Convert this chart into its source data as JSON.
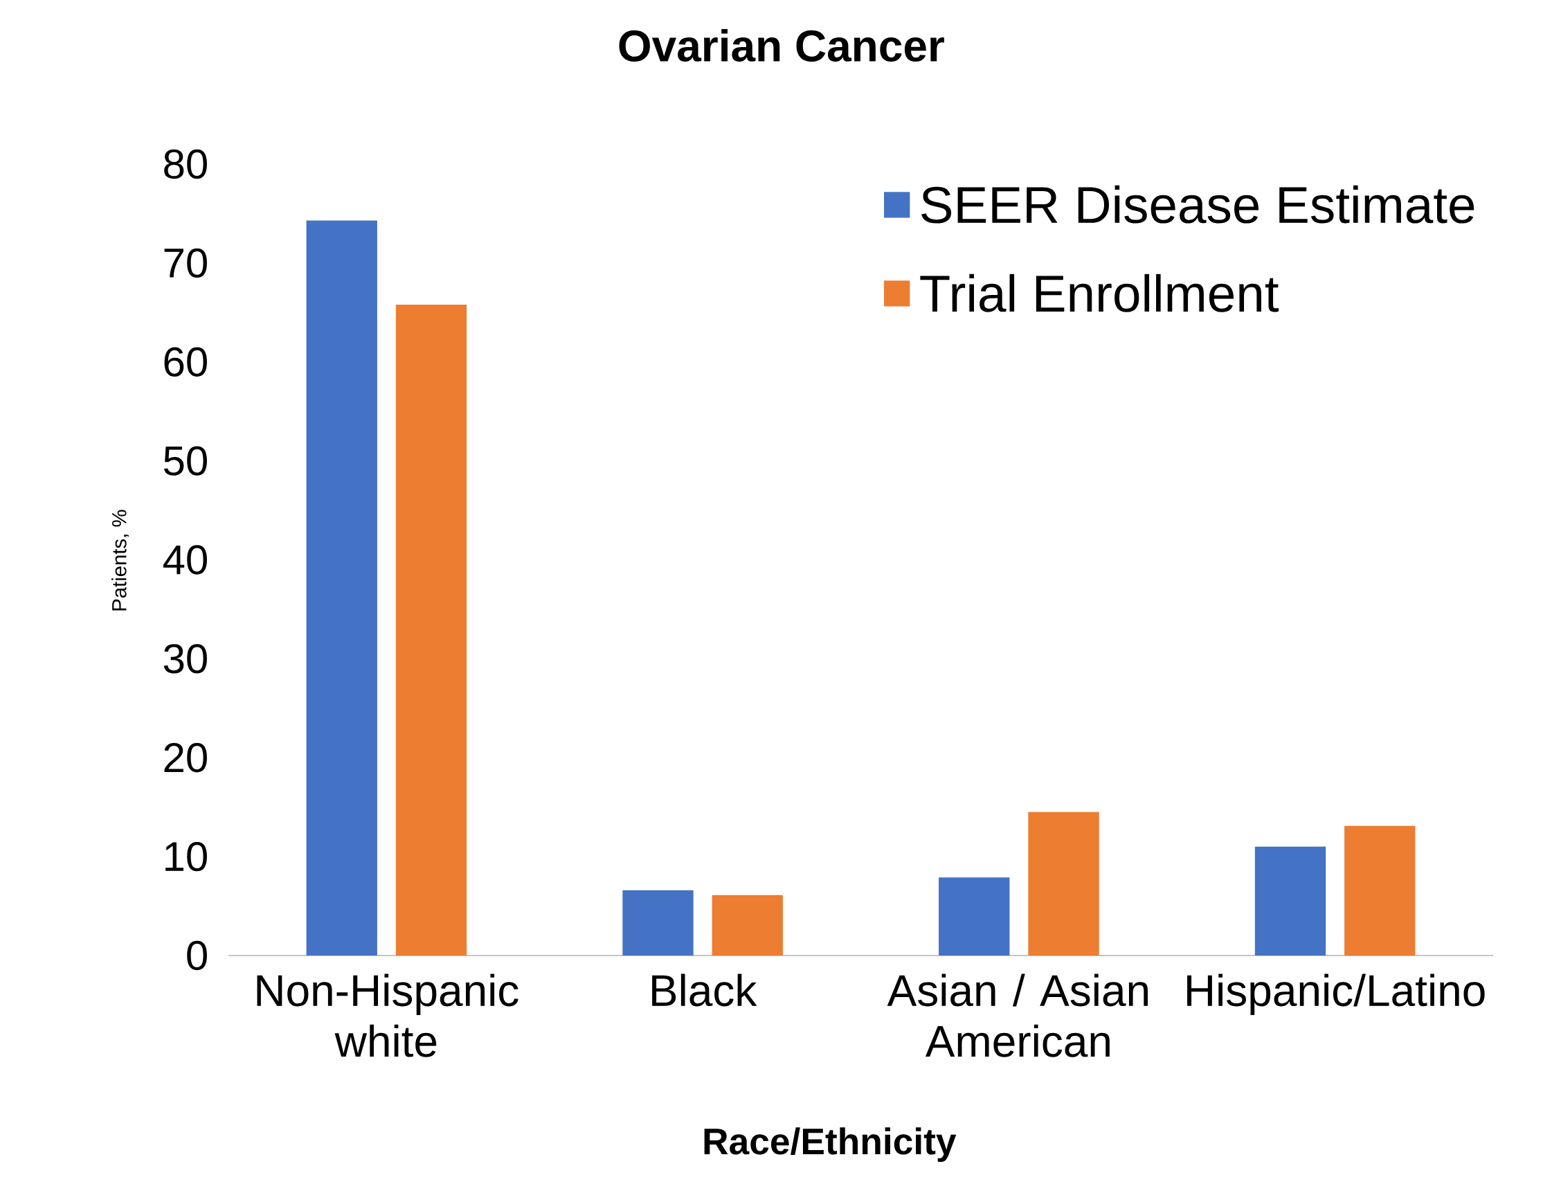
{
  "chart_data": {
    "type": "bar",
    "title": "Ovarian Cancer",
    "xlabel": "Race/Ethnicity",
    "ylabel": "Patients, %",
    "categories": [
      "Non-Hispanic white",
      "Black",
      "Asian / Asian American",
      "Hispanic/Latino"
    ],
    "series": [
      {
        "name": "SEER Disease Estimate",
        "color": "#4472c4",
        "values": [
          74.3,
          6.6,
          7.9,
          11.0
        ]
      },
      {
        "name": "Trial Enrollment",
        "color": "#ed7d31",
        "values": [
          65.8,
          6.1,
          14.5,
          13.1
        ]
      }
    ],
    "ylim": [
      0,
      80
    ],
    "yticks": [
      0,
      10,
      20,
      30,
      40,
      50,
      60,
      70,
      80
    ],
    "legend": "top right"
  }
}
